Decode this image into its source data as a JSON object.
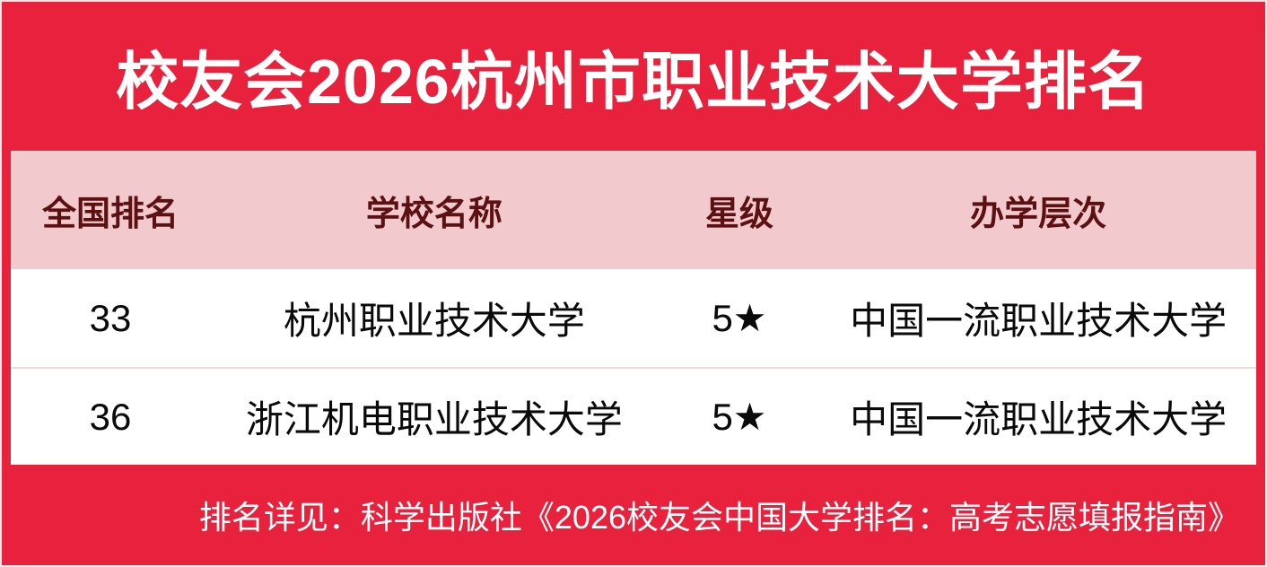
{
  "title": "校友会2026杭州市职业技术大学排名",
  "table": {
    "headers": [
      "全国排名",
      "学校名称",
      "星级",
      "办学层次"
    ],
    "rows": [
      {
        "rank": "33",
        "school": "杭州职业技术大学",
        "star": "5★",
        "level": "中国一流职业技术大学"
      },
      {
        "rank": "36",
        "school": "浙江机电职业技术大学",
        "star": "5★",
        "level": "中国一流职业技术大学"
      }
    ]
  },
  "footer": {
    "note": "排名详见：科学出版社《2026校友会中国大学排名：高考志愿填报指南》"
  },
  "colors": {
    "background_red": "#E8213C",
    "header_pink": "#F2C9CC",
    "header_text_maroon": "#5B1111",
    "body_text": "#0A0A0A",
    "divider_pink": "#F0D9DB",
    "title_text": "#FFFFFF"
  },
  "chart_data": {
    "type": "table",
    "title": "校友会2026杭州市职业技术大学排名",
    "columns": [
      "全国排名",
      "学校名称",
      "星级",
      "办学层次"
    ],
    "rows": [
      [
        "33",
        "杭州职业技术大学",
        "5★",
        "中国一流职业技术大学"
      ],
      [
        "36",
        "浙江机电职业技术大学",
        "5★",
        "中国一流职业技术大学"
      ]
    ],
    "note": "排名详见：科学出版社《2026校友会中国大学排名：高考志愿填报指南》",
    "layout": {
      "header_style": "pink band, dark maroon bold text",
      "body_style": "white rows, black text",
      "note_position": "bottom-right on red background"
    }
  }
}
